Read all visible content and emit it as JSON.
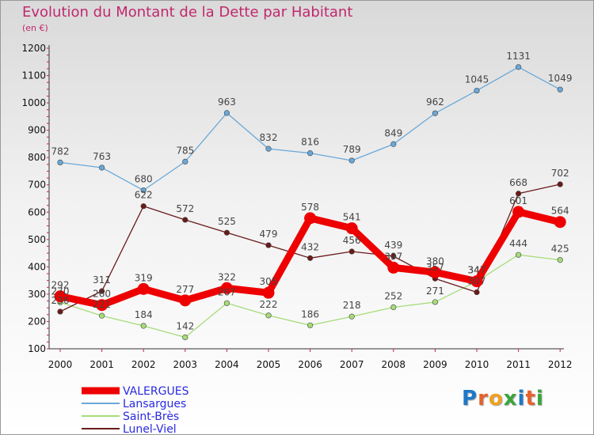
{
  "title": "Evolution du Montant de la Dette par Habitant",
  "subtitle": "(en €)",
  "logo": {
    "text": "Proxiti",
    "letters": [
      {
        "ch": "P",
        "color": "#1e78c8"
      },
      {
        "ch": "r",
        "color": "#e8602c"
      },
      {
        "ch": "o",
        "color": "#f0a020"
      },
      {
        "ch": "x",
        "color": "#3aa53a"
      },
      {
        "ch": "i",
        "color": "#1e78c8"
      },
      {
        "ch": "t",
        "color": "#e8602c"
      },
      {
        "ch": "i",
        "color": "#3aa53a"
      }
    ]
  },
  "chart_data": {
    "type": "line",
    "title": "Evolution du Montant de la Dette par Habitant",
    "ylabel": "(en €)",
    "x": [
      "2000",
      "2001",
      "2002",
      "2003",
      "2004",
      "2005",
      "2006",
      "2007",
      "2008",
      "2009",
      "2010",
      "2011",
      "2012"
    ],
    "ylim": [
      100,
      1200
    ],
    "yticks": [
      100,
      200,
      300,
      400,
      500,
      600,
      700,
      800,
      900,
      1000,
      1100,
      1200
    ],
    "grid": false,
    "legend": "bottom-left",
    "series": [
      {
        "name": "VALERGUES",
        "color": "#ee0000",
        "values": [
          292,
          260,
          319,
          277,
          322,
          305,
          578,
          541,
          397,
          380,
          347,
          601,
          564
        ],
        "labels": [
          "292",
          "260",
          "319",
          "277",
          "322",
          "305",
          "578",
          "541",
          "397",
          "380",
          "347",
          "601",
          "564"
        ]
      },
      {
        "name": "Lansargues",
        "color": "#6aa8d8",
        "values": [
          782,
          763,
          680,
          785,
          963,
          832,
          816,
          789,
          849,
          962,
          1045,
          1131,
          1049
        ],
        "labels": [
          "782",
          "763",
          "680",
          "785",
          "963",
          "832",
          "816",
          "789",
          "849",
          "962",
          "1045",
          "1131",
          "1049"
        ]
      },
      {
        "name": "Saint-Brès",
        "color": "#a6dc78",
        "values": [
          270,
          221,
          184,
          142,
          267,
          222,
          186,
          218,
          252,
          271,
          347,
          444,
          425
        ],
        "labels": [
          "270",
          "221",
          "184",
          "142",
          "267",
          "222",
          "186",
          "218",
          "252",
          "271",
          "347",
          "444",
          "425"
        ]
      },
      {
        "name": "Lunel-Viel",
        "color": "#6b1a1a",
        "values": [
          236,
          311,
          622,
          572,
          525,
          479,
          432,
          456,
          439,
          357,
          307,
          668,
          702
        ],
        "labels": [
          "236",
          "311",
          "622",
          "572",
          "525",
          "479",
          "432",
          "456",
          "439",
          "357",
          "307",
          "668",
          "702"
        ]
      }
    ]
  }
}
